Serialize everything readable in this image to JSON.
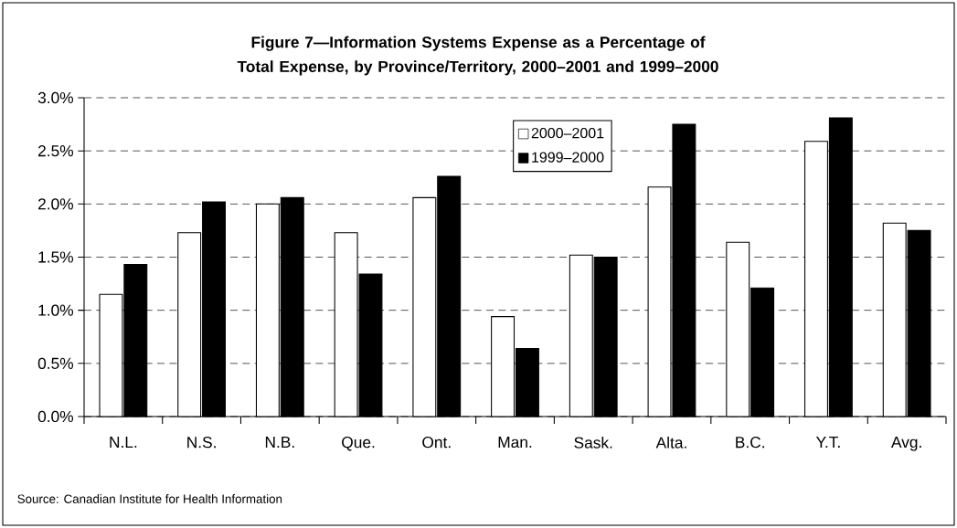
{
  "chart_data": {
    "type": "bar",
    "title": "Figure 7—Information Systems Expense as a Percentage of Total Expense, by Province/Territory, 2000–2001 and 1999–2000",
    "categories": [
      "N.L.",
      "N.S.",
      "N.B.",
      "Que.",
      "Ont.",
      "Man.",
      "Sask.",
      "Alta.",
      "B.C.",
      "Y.T.",
      "Avg."
    ],
    "series": [
      {
        "name": "2000–2001",
        "color": "#ffffff",
        "values": [
          1.15,
          1.73,
          2.0,
          1.73,
          2.06,
          0.94,
          1.52,
          2.16,
          1.64,
          2.59,
          1.82
        ]
      },
      {
        "name": "1999–2000",
        "color": "#000000",
        "values": [
          1.43,
          2.02,
          2.06,
          1.34,
          2.26,
          0.64,
          1.5,
          2.75,
          1.21,
          2.81,
          1.75
        ]
      }
    ],
    "ylim": [
      0,
      3
    ],
    "yticks": [
      {
        "value": 0,
        "label": "0.0%"
      },
      {
        "value": 0.5,
        "label": "0.5%"
      },
      {
        "value": 1,
        "label": "1.0%"
      },
      {
        "value": 1.5,
        "label": "1.5%"
      },
      {
        "value": 2,
        "label": "2.0%"
      },
      {
        "value": 2.5,
        "label": "2.5%"
      },
      {
        "value": 3,
        "label": "3.0%"
      }
    ],
    "grid": "y",
    "legend": "top",
    "annotations": [
      "Source: Canadian Institute for Health Information"
    ]
  }
}
